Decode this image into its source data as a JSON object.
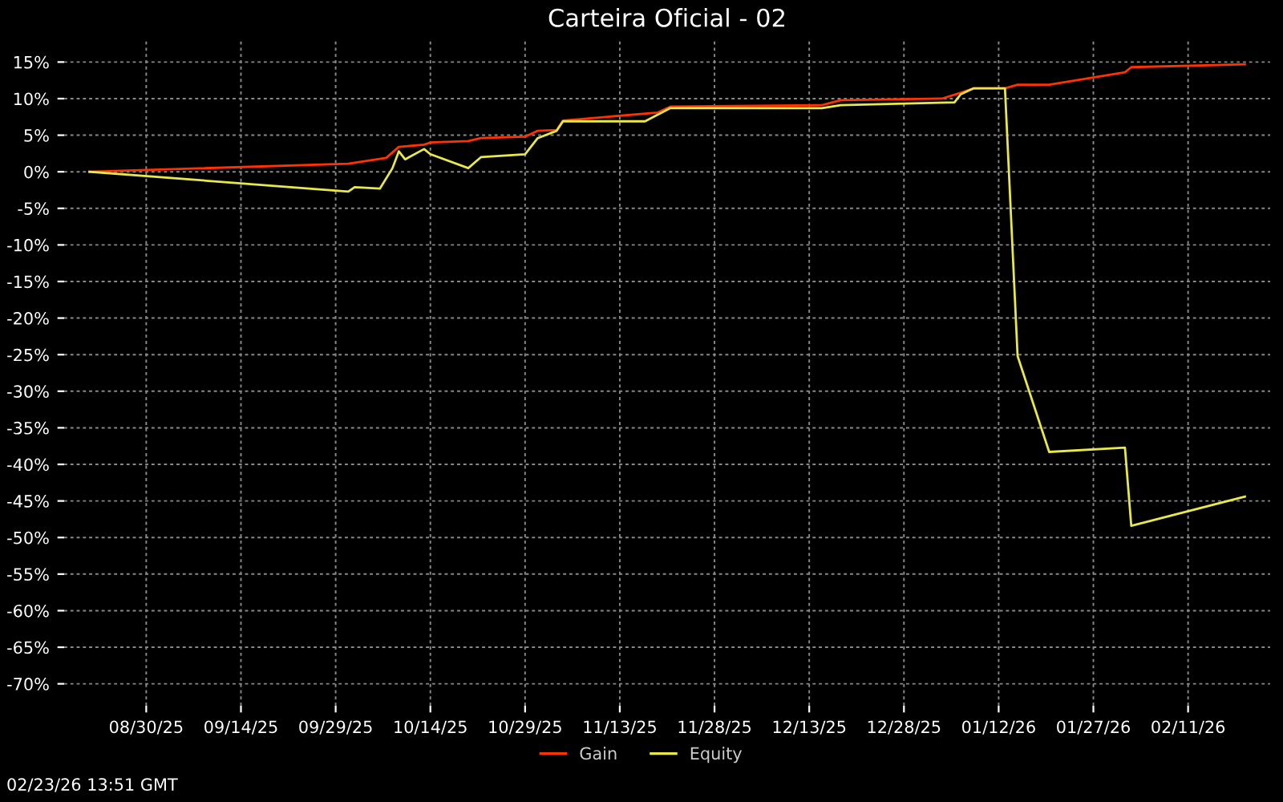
{
  "chart_data": {
    "type": "line",
    "title": "Carteira Oficial - 02",
    "series": [
      {
        "name": "Gain",
        "color": "#ff3300",
        "x": [
          "2025-08-21",
          "2025-10-01",
          "2025-10-07",
          "2025-10-09",
          "2025-10-13",
          "2025-10-14",
          "2025-10-20",
          "2025-10-22",
          "2025-10-29",
          "2025-10-31",
          "2025-11-03",
          "2025-11-04",
          "2025-11-19",
          "2025-11-21",
          "2025-12-15",
          "2025-12-18",
          "2026-01-03",
          "2026-01-06",
          "2026-01-08",
          "2026-01-13",
          "2026-01-15",
          "2026-01-20",
          "2026-02-01",
          "2026-02-02",
          "2026-02-20"
        ],
        "values": [
          0,
          1.1,
          1.9,
          3.4,
          3.7,
          4.0,
          4.2,
          4.6,
          4.8,
          5.6,
          5.7,
          7.0,
          8.1,
          8.9,
          9.1,
          9.8,
          10.0,
          10.8,
          11.4,
          11.4,
          11.9,
          11.9,
          13.6,
          14.3,
          14.7
        ]
      },
      {
        "name": "Equity",
        "color": "#e8e84a",
        "x": [
          "2025-08-21",
          "2025-10-01",
          "2025-10-02",
          "2025-10-06",
          "2025-10-08",
          "2025-10-09",
          "2025-10-10",
          "2025-10-13",
          "2025-10-14",
          "2025-10-20",
          "2025-10-22",
          "2025-10-29",
          "2025-10-31",
          "2025-11-03",
          "2025-11-04",
          "2025-11-17",
          "2025-11-21",
          "2025-12-15",
          "2025-12-18",
          "2026-01-05",
          "2026-01-06",
          "2026-01-08",
          "2026-01-13",
          "2026-01-15",
          "2026-01-20",
          "2026-02-01",
          "2026-02-02",
          "2026-02-20"
        ],
        "values": [
          0,
          -2.7,
          -2.1,
          -2.3,
          0.5,
          2.8,
          1.7,
          3.1,
          2.4,
          0.5,
          2.0,
          2.4,
          4.6,
          5.6,
          6.9,
          6.9,
          8.7,
          8.7,
          9.1,
          9.5,
          10.6,
          11.4,
          11.4,
          -25.2,
          -38.3,
          -37.7,
          -48.4,
          -44.4
        ]
      }
    ],
    "xlim": [
      "2025-08-17",
      "2026-02-24"
    ],
    "xticks": [
      {
        "value": "2025-08-30",
        "label": "08/30/25"
      },
      {
        "value": "2025-09-14",
        "label": "09/14/25"
      },
      {
        "value": "2025-09-29",
        "label": "09/29/25"
      },
      {
        "value": "2025-10-14",
        "label": "10/14/25"
      },
      {
        "value": "2025-10-29",
        "label": "10/29/25"
      },
      {
        "value": "2025-11-13",
        "label": "11/13/25"
      },
      {
        "value": "2025-11-28",
        "label": "11/28/25"
      },
      {
        "value": "2025-12-13",
        "label": "12/13/25"
      },
      {
        "value": "2025-12-28",
        "label": "12/28/25"
      },
      {
        "value": "2026-01-12",
        "label": "01/12/26"
      },
      {
        "value": "2026-01-27",
        "label": "01/27/26"
      },
      {
        "value": "2026-02-11",
        "label": "02/11/26"
      }
    ],
    "ylim": [
      -73,
      18
    ],
    "yticks": [
      {
        "value": 15,
        "label": "15%"
      },
      {
        "value": 10,
        "label": "10%"
      },
      {
        "value": 5,
        "label": "5%"
      },
      {
        "value": 0,
        "label": "0%"
      },
      {
        "value": -5,
        "label": "-5%"
      },
      {
        "value": -10,
        "label": "-10%"
      },
      {
        "value": -15,
        "label": "-15%"
      },
      {
        "value": -20,
        "label": "-20%"
      },
      {
        "value": -25,
        "label": "-25%"
      },
      {
        "value": -30,
        "label": "-30%"
      },
      {
        "value": -35,
        "label": "-35%"
      },
      {
        "value": -40,
        "label": "-40%"
      },
      {
        "value": -45,
        "label": "-45%"
      },
      {
        "value": -50,
        "label": "-50%"
      },
      {
        "value": -55,
        "label": "-55%"
      },
      {
        "value": -60,
        "label": "-60%"
      },
      {
        "value": -65,
        "label": "-65%"
      },
      {
        "value": -70,
        "label": "-70%"
      }
    ],
    "grid": true,
    "legend": "bottom",
    "marker": "none",
    "line_style": "solid",
    "annotations": [
      "02/23/26 13:51 GMT"
    ]
  }
}
